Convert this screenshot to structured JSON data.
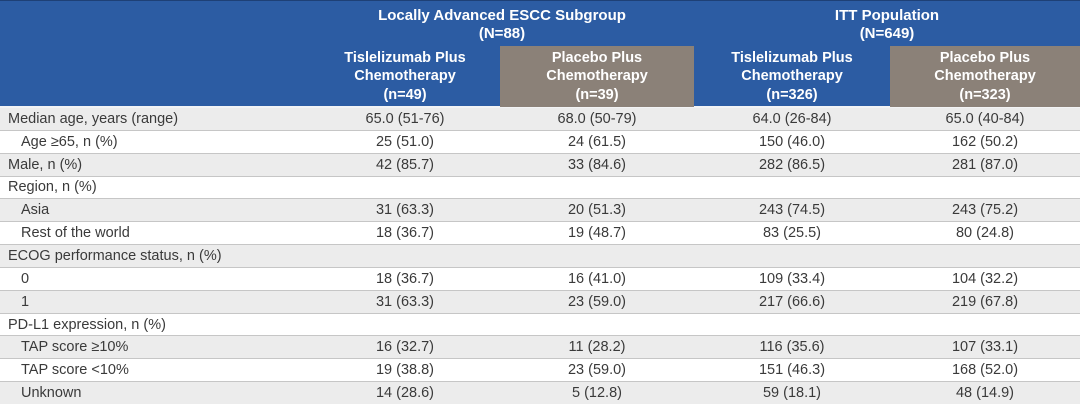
{
  "table": {
    "title_semantic": "Baseline demographics and disease characteristics",
    "groups": [
      {
        "title": "Locally Advanced ESCC Subgroup",
        "n": "(N=88)"
      },
      {
        "title": "ITT Population",
        "n": "(N=649)"
      }
    ],
    "columns": [
      {
        "title": "Tislelizumab Plus Chemotherapy",
        "n": "(n=49)",
        "variant": "blue"
      },
      {
        "title": "Placebo Plus Chemotherapy",
        "n": "(n=39)",
        "variant": "taupe"
      },
      {
        "title": "Tislelizumab Plus Chemotherapy",
        "n": "(n=326)",
        "variant": "blue"
      },
      {
        "title": "Placebo Plus Chemotherapy",
        "n": "(n=323)",
        "variant": "taupe"
      }
    ],
    "rows": [
      {
        "label": "Median age, years (range)",
        "indent": false,
        "values": [
          "65.0 (51-76)",
          "68.0 (50-79)",
          "64.0 (26-84)",
          "65.0 (40-84)"
        ]
      },
      {
        "label": "Age ≥65, n (%)",
        "indent": true,
        "values": [
          "25 (51.0)",
          "24 (61.5)",
          "150 (46.0)",
          "162 (50.2)"
        ]
      },
      {
        "label": "Male, n (%)",
        "indent": false,
        "values": [
          "42 (85.7)",
          "33 (84.6)",
          "282 (86.5)",
          "281 (87.0)"
        ]
      },
      {
        "label": "Region, n (%)",
        "indent": false,
        "values": [
          "",
          "",
          "",
          ""
        ]
      },
      {
        "label": "Asia",
        "indent": true,
        "values": [
          "31 (63.3)",
          "20 (51.3)",
          "243 (74.5)",
          "243 (75.2)"
        ]
      },
      {
        "label": "Rest of the world",
        "indent": true,
        "values": [
          "18 (36.7)",
          "19 (48.7)",
          "83 (25.5)",
          "80 (24.8)"
        ]
      },
      {
        "label": "ECOG performance status, n (%)",
        "indent": false,
        "values": [
          "",
          "",
          "",
          ""
        ]
      },
      {
        "label": "0",
        "indent": true,
        "values": [
          "18 (36.7)",
          "16 (41.0)",
          "109 (33.4)",
          "104 (32.2)"
        ]
      },
      {
        "label": "1",
        "indent": true,
        "values": [
          "31 (63.3)",
          "23 (59.0)",
          "217 (66.6)",
          "219 (67.8)"
        ]
      },
      {
        "label": "PD-L1 expression, n (%)",
        "indent": false,
        "values": [
          "",
          "",
          "",
          ""
        ]
      },
      {
        "label": "TAP score ≥10%",
        "indent": true,
        "values": [
          "16 (32.7)",
          "11 (28.2)",
          "116 (35.6)",
          "107 (33.1)"
        ]
      },
      {
        "label": "TAP score <10%",
        "indent": true,
        "values": [
          "19 (38.8)",
          "23 (59.0)",
          "151 (46.3)",
          "168 (52.0)"
        ]
      },
      {
        "label": "Unknown",
        "indent": true,
        "values": [
          "14 (28.6)",
          "5 (12.8)",
          "59 (18.1)",
          "48 (14.9)"
        ]
      }
    ],
    "colors": {
      "header_blue": "#2C5CA3",
      "header_taupe": "#8B8178",
      "row_stripe": "#ECECEC",
      "row_border": "#C6C6C6",
      "body_text": "#3A3A3A"
    }
  }
}
